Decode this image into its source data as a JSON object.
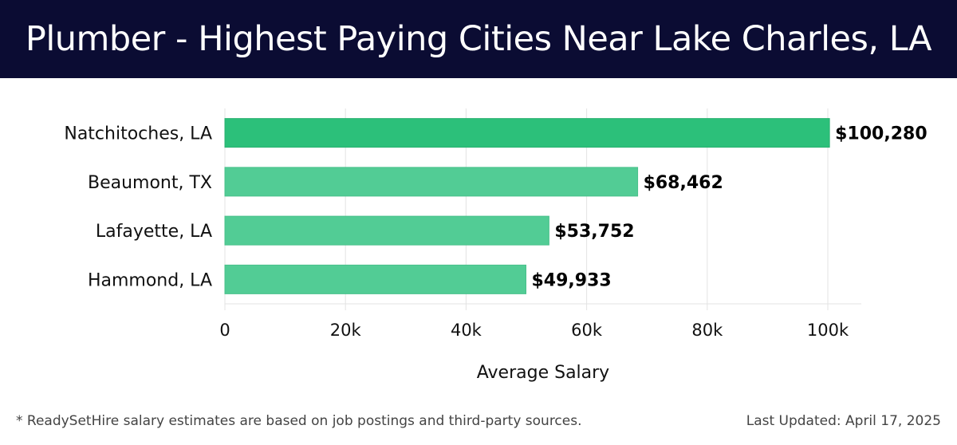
{
  "header": {
    "title": "Plumber - Highest Paying Cities Near Lake Charles, LA"
  },
  "footer": {
    "note": "* ReadySetHire salary estimates are based on job postings and third-party sources.",
    "last_updated": "Last Updated: April 17, 2025"
  },
  "colors": {
    "title_bg": "#0b0c33",
    "bar_top": "#2cc07a",
    "bar_other": "#52cc95"
  },
  "chart_data": {
    "type": "bar",
    "orientation": "horizontal",
    "categories": [
      "Natchitoches, LA",
      "Beaumont, TX",
      "Lafayette, LA",
      "Hammond, LA"
    ],
    "values": [
      100280,
      68462,
      53752,
      49933
    ],
    "value_labels": [
      "$100,280",
      "$68,462",
      "$53,752",
      "$49,933"
    ],
    "xlabel": "Average Salary",
    "ylabel": "",
    "xlim": [
      0,
      105000
    ],
    "x_ticks": [
      0,
      20000,
      40000,
      60000,
      80000,
      100000
    ],
    "x_tick_labels": [
      "0",
      "20k",
      "40k",
      "60k",
      "80k",
      "100k"
    ],
    "grid": "vertical",
    "legend": "none"
  }
}
